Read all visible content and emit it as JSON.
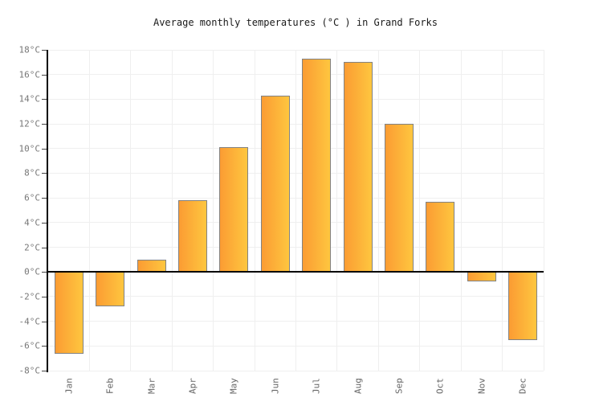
{
  "title": "Average monthly temperatures (°C ) in Grand Forks",
  "chart_data": {
    "type": "bar",
    "title": "Average monthly temperatures (°C ) in Grand Forks",
    "categories": [
      "Jan",
      "Feb",
      "Mar",
      "Apr",
      "May",
      "Jun",
      "Jul",
      "Aug",
      "Sep",
      "Oct",
      "Nov",
      "Dec"
    ],
    "values": [
      -6.6,
      -2.8,
      1,
      5.8,
      10.1,
      14.3,
      17.3,
      17,
      12,
      5.7,
      -0.8,
      -5.5
    ],
    "xlabel": "",
    "ylabel": "",
    "ylim": [
      -8,
      18
    ],
    "ytick_step": 2,
    "ytick_labels": [
      "18°C",
      "16°C",
      "14°C",
      "12°C",
      "10°C",
      "8°C",
      "6°C",
      "4°C",
      "2°C",
      "0°C",
      "-2°C",
      "-4°C",
      "-6°C",
      "-8°C"
    ],
    "grid": true,
    "legend_position": "none",
    "colors": {
      "bar_gradient_left": "#FB9C33",
      "bar_gradient_right": "#FEC63F",
      "bar_border": "#828282",
      "gridline": "#EFEFEF",
      "axis": "#000000",
      "y_label": "#777777",
      "x_label": "#666666",
      "title": "#1A1A1A",
      "background": "#FFFFFF"
    }
  }
}
